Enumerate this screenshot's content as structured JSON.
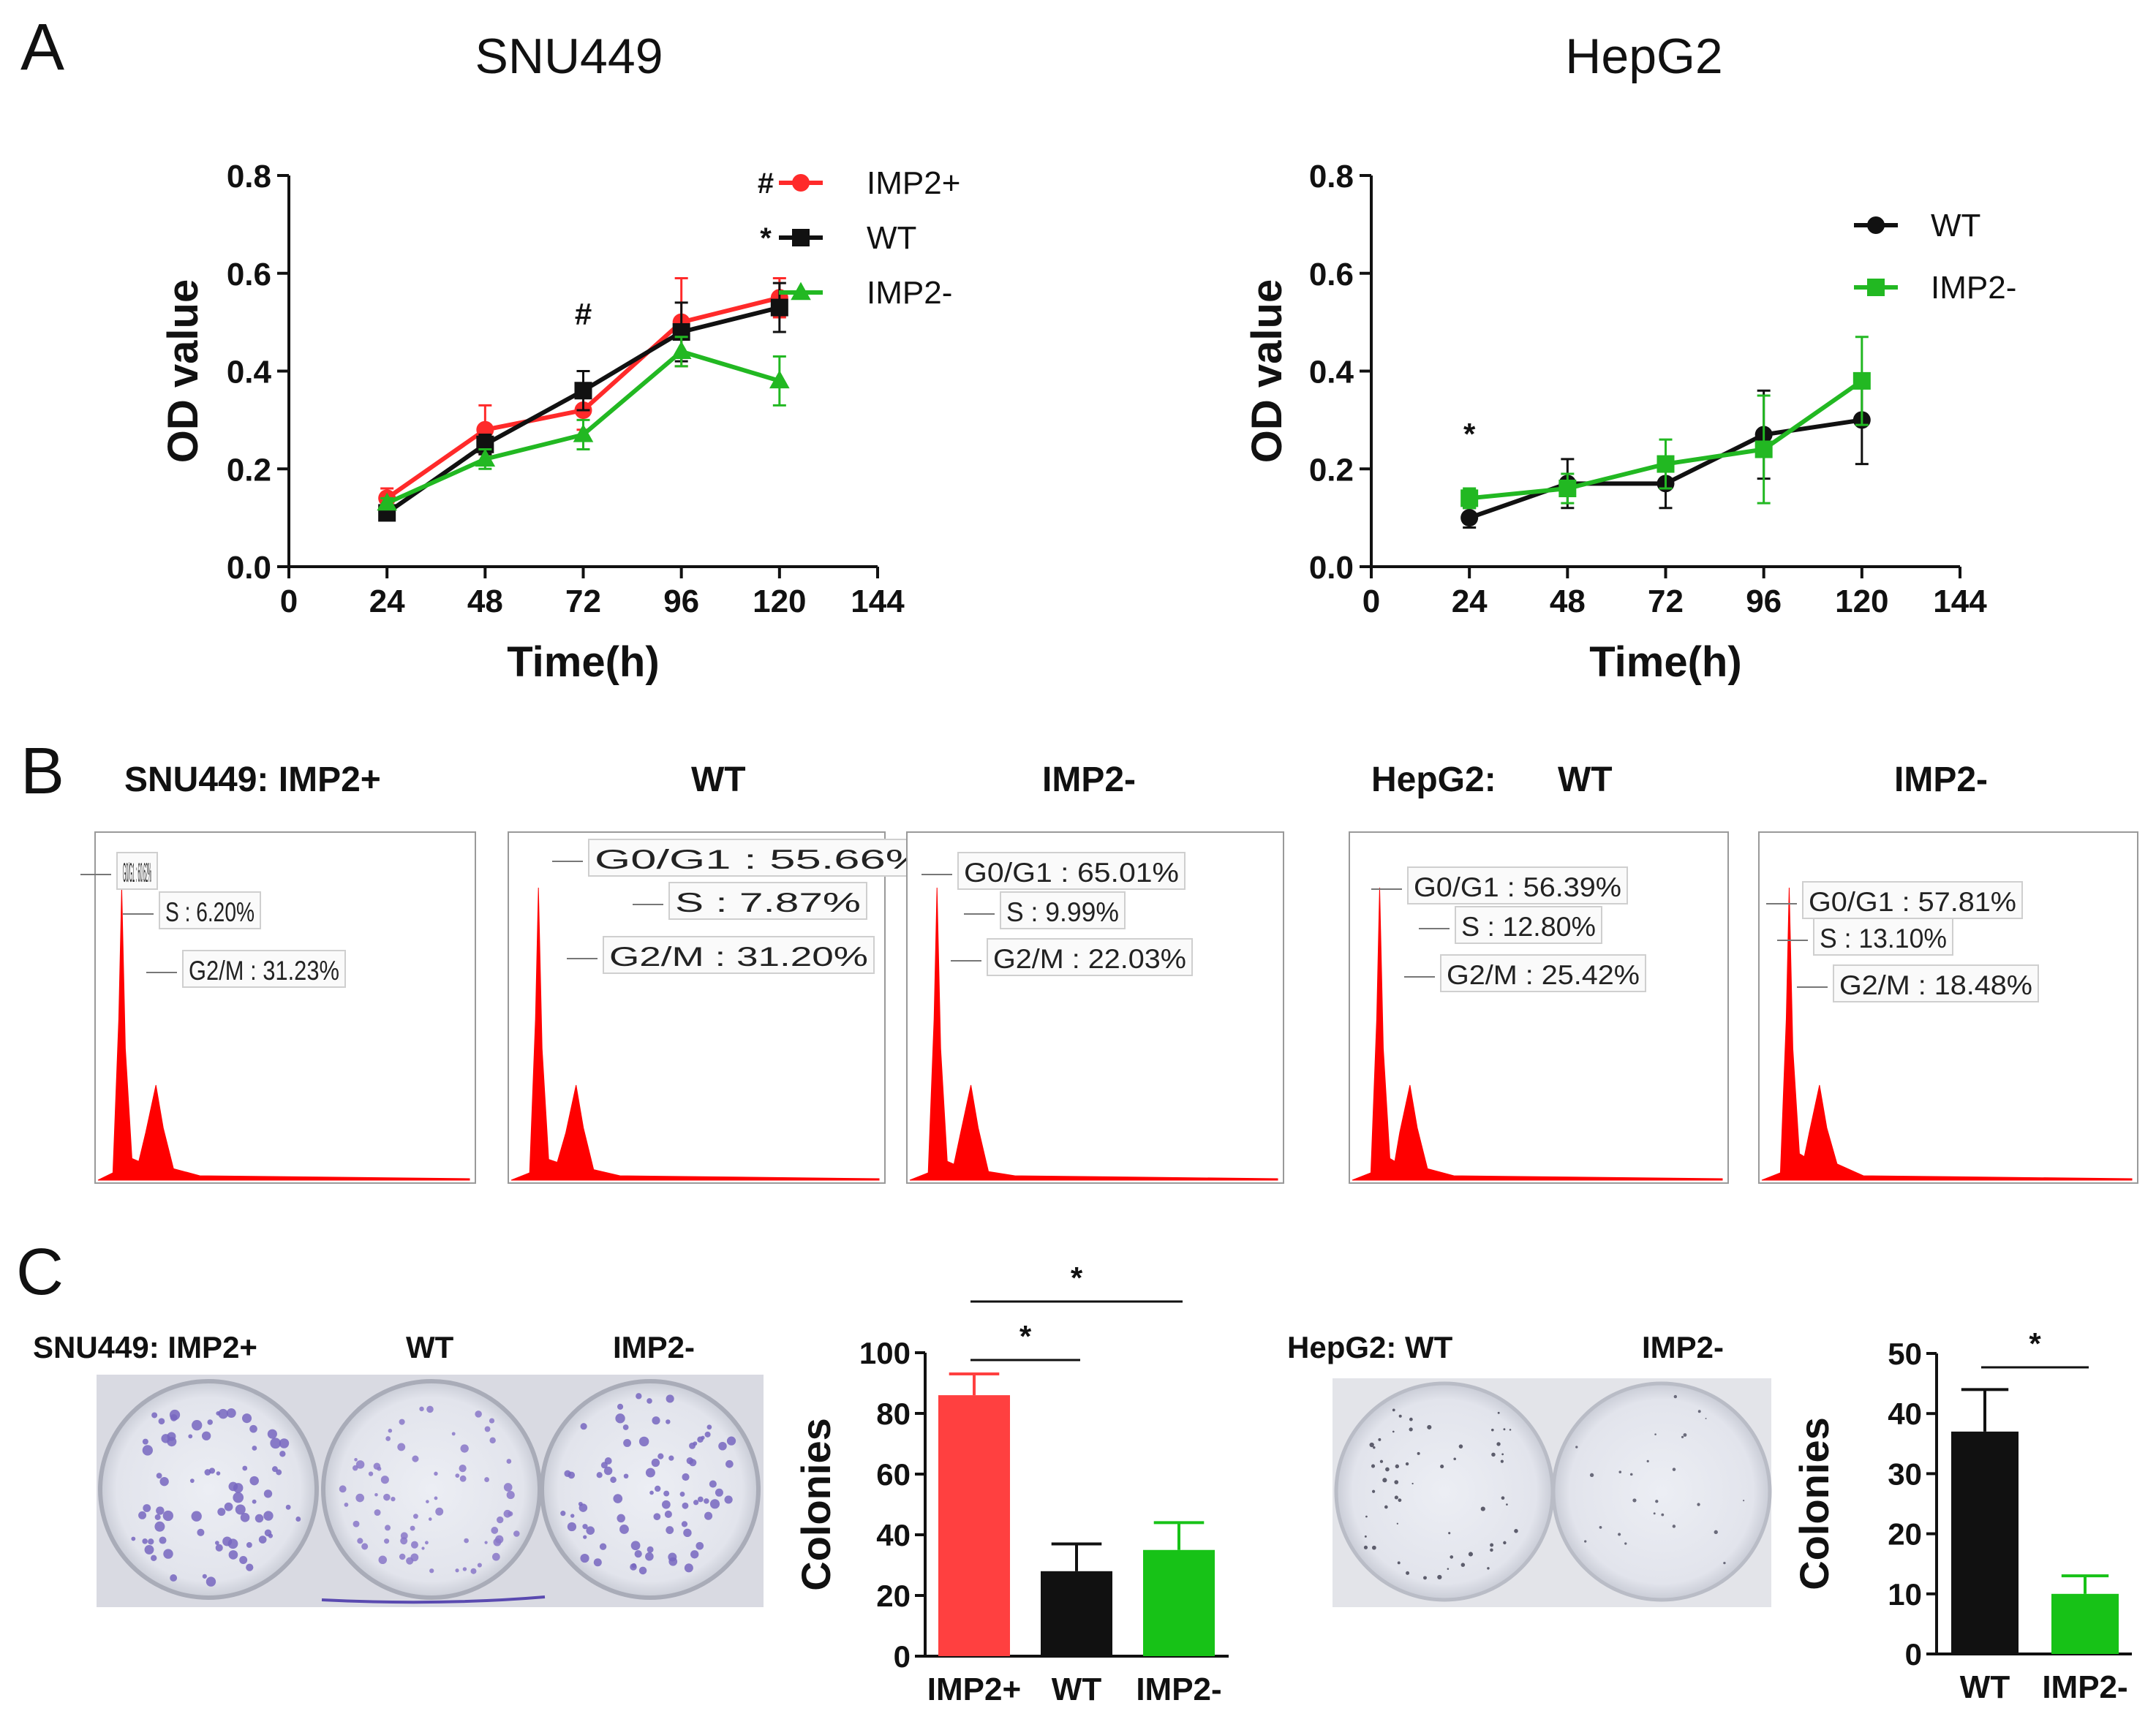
{
  "panels": {
    "a": "A",
    "b": "B",
    "c": "C"
  },
  "colors": {
    "red": "#ff2a2a",
    "black": "#111111",
    "green": "#22b822",
    "hist": "#ff0000",
    "bar_red": "#ff4040",
    "bar_green": "#17c217"
  },
  "chart_data": [
    {
      "id": "snu449_growth",
      "type": "line",
      "title": "SNU449",
      "xlabel": "Time(h)",
      "ylabel": "OD value",
      "xlim": [
        0,
        144
      ],
      "ylim": [
        0,
        0.8
      ],
      "xticks": [
        "0",
        "24",
        "48",
        "72",
        "96",
        "120",
        "144"
      ],
      "yticks": [
        "0.0",
        "0.2",
        "0.4",
        "0.6",
        "0.8"
      ],
      "x": [
        24,
        48,
        72,
        96,
        120
      ],
      "series": [
        {
          "name": "IMP2+",
          "color": "#ff2a2a",
          "marker": "circle",
          "values": [
            0.14,
            0.28,
            0.32,
            0.5,
            0.55
          ],
          "errors": [
            0.02,
            0.05,
            0.04,
            0.09,
            0.04
          ],
          "sig": "#"
        },
        {
          "name": "WT",
          "color": "#111111",
          "marker": "square",
          "values": [
            0.11,
            0.25,
            0.36,
            0.48,
            0.53
          ],
          "errors": [
            0.01,
            0.02,
            0.04,
            0.06,
            0.05
          ],
          "sig": "*"
        },
        {
          "name": "IMP2-",
          "color": "#22b822",
          "marker": "triangle",
          "values": [
            0.13,
            0.22,
            0.27,
            0.44,
            0.38
          ],
          "errors": [
            0.01,
            0.02,
            0.03,
            0.03,
            0.05
          ],
          "sig": ""
        }
      ],
      "annotations": [
        {
          "text": "#",
          "x": 72,
          "y": 0.495
        }
      ]
    },
    {
      "id": "hepg2_growth",
      "type": "line",
      "title": "HepG2",
      "xlabel": "Time(h)",
      "ylabel": "OD value",
      "xlim": [
        0,
        144
      ],
      "ylim": [
        0,
        0.8
      ],
      "xticks": [
        "0",
        "24",
        "48",
        "72",
        "96",
        "120",
        "144"
      ],
      "yticks": [
        "0.0",
        "0.2",
        "0.4",
        "0.6",
        "0.8"
      ],
      "x": [
        24,
        48,
        72,
        96,
        120
      ],
      "series": [
        {
          "name": "WT",
          "color": "#111111",
          "marker": "circle",
          "values": [
            0.1,
            0.17,
            0.17,
            0.27,
            0.3
          ],
          "errors": [
            0.02,
            0.05,
            0.05,
            0.09,
            0.09
          ],
          "sig": ""
        },
        {
          "name": "IMP2-",
          "color": "#22b822",
          "marker": "square",
          "values": [
            0.14,
            0.16,
            0.21,
            0.24,
            0.38
          ],
          "errors": [
            0.02,
            0.03,
            0.05,
            0.11,
            0.09
          ],
          "sig": ""
        }
      ],
      "annotations": [
        {
          "text": "*",
          "x": 24,
          "y": 0.25
        }
      ]
    },
    {
      "id": "snu449_colonies",
      "type": "bar",
      "ylabel": "Colonies",
      "ylim": [
        0,
        100
      ],
      "yticks": [
        "0",
        "20",
        "40",
        "60",
        "80",
        "100"
      ],
      "categories": [
        "IMP2+",
        "WT",
        "IMP2-"
      ],
      "values": [
        86,
        28,
        35
      ],
      "errors": [
        7,
        9,
        9
      ],
      "colors": [
        "#ff4040",
        "#111111",
        "#17c217"
      ],
      "significance": [
        {
          "from": 0,
          "to": 1,
          "label": "*"
        },
        {
          "from": 0,
          "to": 2,
          "label": "*"
        }
      ]
    },
    {
      "id": "hepg2_colonies",
      "type": "bar",
      "ylabel": "Colonies",
      "ylim": [
        0,
        50
      ],
      "yticks": [
        "0",
        "10",
        "20",
        "30",
        "40",
        "50"
      ],
      "categories": [
        "WT",
        "IMP2-"
      ],
      "values": [
        37,
        10
      ],
      "errors": [
        7,
        3
      ],
      "colors": [
        "#111111",
        "#17c217"
      ],
      "significance": [
        {
          "from": 0,
          "to": 1,
          "label": "*"
        }
      ]
    }
  ],
  "flow": {
    "headers": {
      "snu449_prefix": "SNU449: IMP2+",
      "wt": "WT",
      "imp2minus": "IMP2-",
      "hepg2_prefix": "HepG2:",
      "hepg2_wt": "WT",
      "hepg2_imp2minus": "IMP2-"
    },
    "panels": [
      {
        "id": "snu-imp2plus",
        "g0g1": "G0/G1 : 60.62%",
        "s": "S : 6.20%",
        "g2m": "G2/M : 31.23%"
      },
      {
        "id": "snu-wt",
        "g0g1": "G0/G1 : 55.66%",
        "s": "S : 7.87%",
        "g2m": "G2/M : 31.20%"
      },
      {
        "id": "snu-imp2minus",
        "g0g1": "G0/G1 : 65.01%",
        "s": "S : 9.99%",
        "g2m": "G2/M : 22.03%"
      },
      {
        "id": "hep-wt",
        "g0g1": "G0/G1 : 56.39%",
        "s": "S : 12.80%",
        "g2m": "G2/M : 25.42%"
      },
      {
        "id": "hep-imp2minus",
        "g0g1": "G0/G1 : 57.81%",
        "s": "S : 13.10%",
        "g2m": "G2/M : 18.48%"
      }
    ]
  },
  "colony": {
    "snu_labels": [
      "SNU449: IMP2+",
      "WT",
      "IMP2-"
    ],
    "hep_labels": [
      "HepG2: WT",
      "IMP2-"
    ]
  }
}
